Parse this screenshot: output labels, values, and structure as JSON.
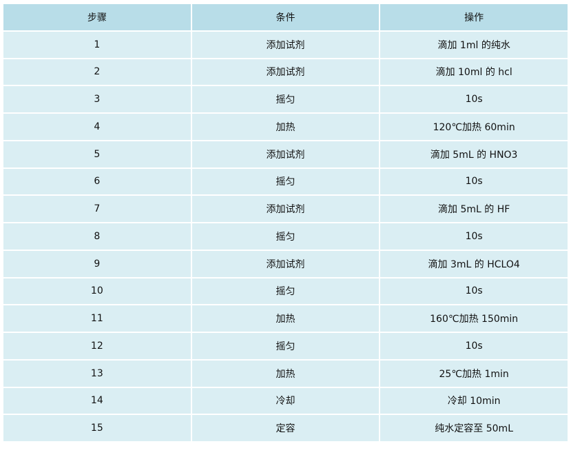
{
  "table": {
    "headers": [
      "步骤",
      "条件",
      "操作"
    ],
    "rows": [
      [
        "1",
        "添加试剂",
        "滴加 1ml 的纯水"
      ],
      [
        "2",
        "添加试剂",
        "滴加 10ml 的 hcl"
      ],
      [
        "3",
        "摇匀",
        "10s"
      ],
      [
        "4",
        "加热",
        "120℃加热 60min"
      ],
      [
        "5",
        "添加试剂",
        "滴加 5mL 的 HNO3"
      ],
      [
        "6",
        "摇匀",
        "10s"
      ],
      [
        "7",
        "添加试剂",
        "滴加 5mL 的 HF"
      ],
      [
        "8",
        "摇匀",
        "10s"
      ],
      [
        "9",
        "添加试剂",
        "滴加 3mL 的 HCLO4"
      ],
      [
        "10",
        "摇匀",
        "10s"
      ],
      [
        "11",
        "加热",
        "160℃加热 150min"
      ],
      [
        "12",
        "摇匀",
        "10s"
      ],
      [
        "13",
        "加热",
        "25℃加热 1min"
      ],
      [
        "14",
        "冷却",
        "冷却 10min"
      ],
      [
        "15",
        "定容",
        "纯水定容至 50mL"
      ]
    ],
    "colors": {
      "header_bg": "#b8dde8",
      "row_bg": "#daeef3",
      "border": "#ffffff"
    }
  }
}
